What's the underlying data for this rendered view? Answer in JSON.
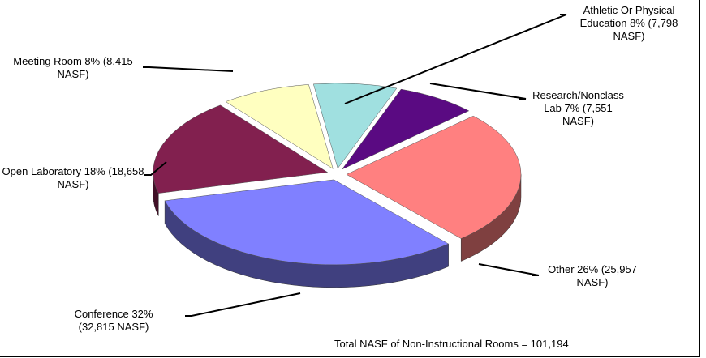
{
  "chart_data": {
    "type": "pie",
    "categories": [
      "Athletic Or Physical Education",
      "Research/Nonclass Lab",
      "Other",
      "Conference",
      "Open Laboratory",
      "Meeting Room"
    ],
    "values": [
      7798,
      7551,
      25957,
      32815,
      18658,
      8415
    ],
    "value_labels": [
      "Athletic Or Physical Education 8% (7,798 NASF)",
      "Research/Nonclass Lab 7% (7,551 NASF)",
      "Other 26% (25,957 NASF)",
      "Conference 32% (32,815 NASF)",
      "Open Laboratory 18% (18,658 NASF)",
      "Meeting Room 8% (8,415 NASF)"
    ],
    "colors": [
      "#a0e0e0",
      "#5a0a82",
      "#ff8080",
      "#8080ff",
      "#82204f",
      "#ffffc0"
    ],
    "note": "Total NASF of Non-Instructional Rooms = 101,194"
  }
}
